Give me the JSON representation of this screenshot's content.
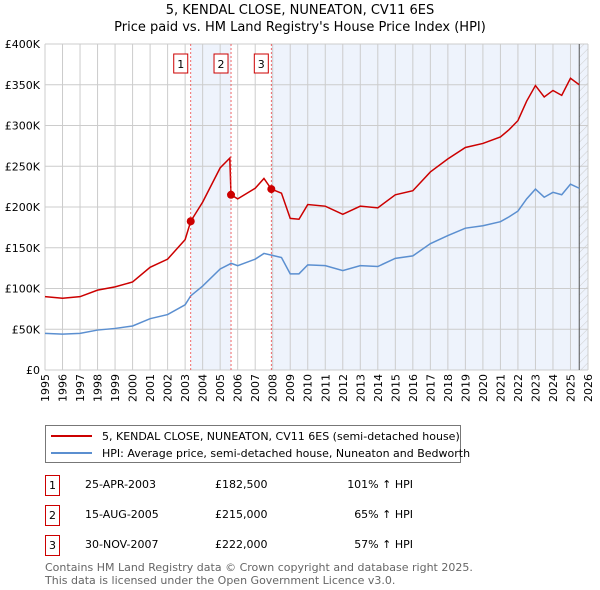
{
  "title": "5, KENDAL CLOSE, NUNEATON, CV11 6ES",
  "subtitle": "Price paid vs. HM Land Registry's House Price Index (HPI)",
  "colors": {
    "property": "#cc0000",
    "hpi": "#5b8fd0",
    "shade": "#eef3fc",
    "grid": "#cccccc"
  },
  "chart_data": {
    "type": "line",
    "title": "5, KENDAL CLOSE, NUNEATON, CV11 6ES",
    "subtitle": "Price paid vs. HM Land Registry's House Price Index (HPI)",
    "xlim": [
      1995,
      2026
    ],
    "ylim": [
      0,
      400000
    ],
    "y_ticks": [
      0,
      50000,
      100000,
      150000,
      200000,
      250000,
      300000,
      350000,
      400000
    ],
    "y_tick_labels": [
      "£0",
      "£50K",
      "£100K",
      "£150K",
      "£200K",
      "£250K",
      "£300K",
      "£350K",
      "£400K"
    ],
    "x_ticks": [
      "1995",
      "1996",
      "1997",
      "1998",
      "1999",
      "2000",
      "2001",
      "2002",
      "2003",
      "2004",
      "2005",
      "2006",
      "2007",
      "2008",
      "2009",
      "2010",
      "2011",
      "2012",
      "2013",
      "2014",
      "2015",
      "2016",
      "2017",
      "2018",
      "2019",
      "2020",
      "2021",
      "2022",
      "2023",
      "2024",
      "2025",
      "2026"
    ],
    "grid": true,
    "x": [
      1995,
      1996,
      1997,
      1998,
      1999,
      2000,
      2001,
      2002,
      2003,
      2003.32,
      2004,
      2005,
      2005.55,
      2005.62,
      2006,
      2007,
      2007.5,
      2007.92,
      2008.5,
      2009,
      2009.5,
      2010,
      2011,
      2012,
      2013,
      2014,
      2015,
      2016,
      2017,
      2018,
      2019,
      2020,
      2021,
      2021.5,
      2022,
      2022.5,
      2023,
      2023.5,
      2024,
      2024.5,
      2025,
      2025.5
    ],
    "series": [
      {
        "name": "5, KENDAL CLOSE, NUNEATON, CV11 6ES (semi-detached house)",
        "color": "#cc0000",
        "values": [
          90000,
          88000,
          90000,
          98000,
          102000,
          108000,
          126000,
          136000,
          160000,
          182500,
          206000,
          248000,
          260000,
          215000,
          210000,
          223000,
          235000,
          222000,
          217000,
          186000,
          185000,
          203000,
          201000,
          191000,
          201000,
          199000,
          215000,
          220000,
          243000,
          259000,
          273000,
          278000,
          286000,
          295000,
          306000,
          330000,
          349000,
          335000,
          343000,
          337000,
          358000,
          350000
        ]
      },
      {
        "name": "HPI: Average price, semi-detached house, Nuneaton and Bedworth",
        "color": "#5b8fd0",
        "values": [
          45000,
          44000,
          45000,
          49000,
          51000,
          54000,
          63000,
          68000,
          80000,
          91000,
          103000,
          124000,
          130000,
          131000,
          128000,
          136000,
          143000,
          141000,
          138000,
          118000,
          118000,
          129000,
          128000,
          122000,
          128000,
          127000,
          137000,
          140000,
          155000,
          165000,
          174000,
          177000,
          182000,
          188000,
          195000,
          210000,
          222000,
          212000,
          218000,
          215000,
          228000,
          223000
        ]
      }
    ],
    "sales": [
      {
        "label": "1",
        "x": 2003.32,
        "value": 182500
      },
      {
        "label": "2",
        "x": 2005.62,
        "value": 215000
      },
      {
        "label": "3",
        "x": 2007.92,
        "value": 222000
      }
    ],
    "hatched_from": 2025.5
  },
  "legend": [
    "5, KENDAL CLOSE, NUNEATON, CV11 6ES (semi-detached house)",
    "HPI: Average price, semi-detached house, Nuneaton and Bedworth"
  ],
  "transactions": [
    {
      "num": "1",
      "date": "25-APR-2003",
      "price": "£182,500",
      "hpi": "101% ↑ HPI"
    },
    {
      "num": "2",
      "date": "15-AUG-2005",
      "price": "£215,000",
      "hpi": "65% ↑ HPI"
    },
    {
      "num": "3",
      "date": "30-NOV-2007",
      "price": "£222,000",
      "hpi": "57% ↑ HPI"
    }
  ],
  "footer": [
    "Contains HM Land Registry data © Crown copyright and database right 2025.",
    "This data is licensed under the Open Government Licence v3.0."
  ]
}
